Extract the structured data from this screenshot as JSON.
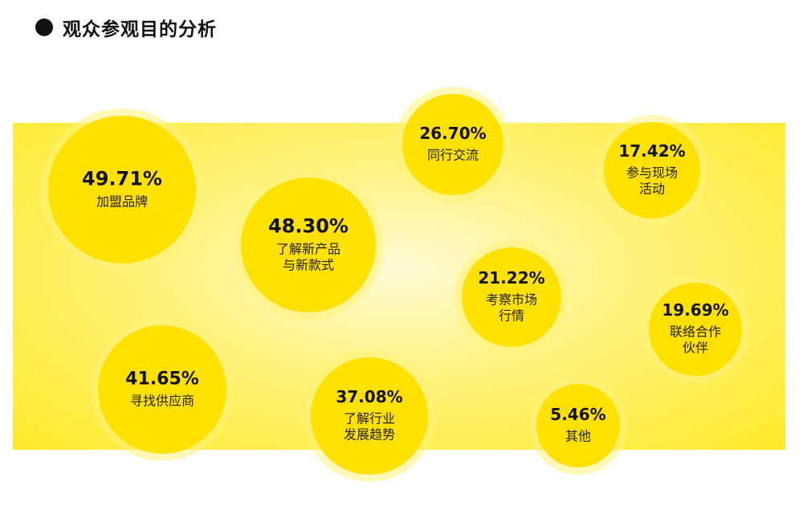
{
  "title": "观众参观目的分析",
  "chart_data": {
    "type": "bubble",
    "title": "观众参观目的分析",
    "unit": "%",
    "series": [
      {
        "label_lines": [
          "加盟品牌"
        ],
        "value": 49.71,
        "display": "49.71%"
      },
      {
        "label_lines": [
          "了解新产品",
          "与新款式"
        ],
        "value": 48.3,
        "display": "48.30%"
      },
      {
        "label_lines": [
          "寻找供应商"
        ],
        "value": 41.65,
        "display": "41.65%"
      },
      {
        "label_lines": [
          "了解行业",
          "发展趋势"
        ],
        "value": 37.08,
        "display": "37.08%"
      },
      {
        "label_lines": [
          "同行交流"
        ],
        "value": 26.7,
        "display": "26.70%"
      },
      {
        "label_lines": [
          "考察市场",
          "行情"
        ],
        "value": 21.22,
        "display": "21.22%"
      },
      {
        "label_lines": [
          "联络合作",
          "伙伴"
        ],
        "value": 19.69,
        "display": "19.69%"
      },
      {
        "label_lines": [
          "参与现场",
          "活动"
        ],
        "value": 17.42,
        "display": "17.42%"
      },
      {
        "label_lines": [
          "其他"
        ],
        "value": 5.46,
        "display": "5.46%"
      }
    ],
    "colors": {
      "bubble": "#ffe100",
      "bubble_glow": "#fff27a",
      "band": "#ffe92a",
      "text": "#111111"
    }
  }
}
